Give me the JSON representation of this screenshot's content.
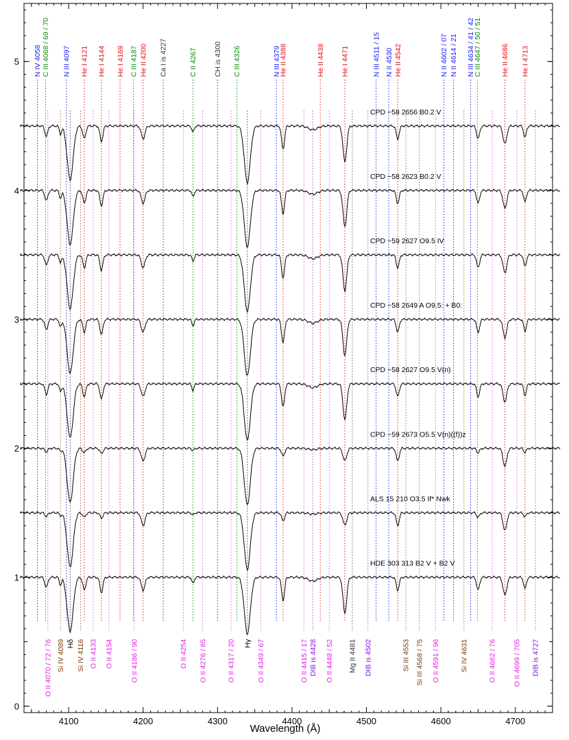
{
  "chart_data": {
    "type": "line",
    "title": "",
    "xlabel": "Wavelength (Å)",
    "ylabel": "",
    "xlim": [
      4040,
      4750
    ],
    "ylim": [
      -0.05,
      5.45
    ],
    "xticks": [
      4100,
      4200,
      4300,
      4400,
      4500,
      4600,
      4700
    ],
    "yticks": [
      0,
      1,
      2,
      3,
      4,
      5
    ],
    "grid": false,
    "legend": "none",
    "spectra": [
      {
        "name": "CPD −58 2656   B0.2 V",
        "offset": 4.5,
        "label_x": 4505,
        "label_y": 4.59
      },
      {
        "name": "CPD −58 2623   B0.2 V",
        "offset": 4.0,
        "label_x": 4505,
        "label_y": 4.09
      },
      {
        "name": "CPD −59 2627   O9.5 IV",
        "offset": 3.5,
        "label_x": 4505,
        "label_y": 3.59
      },
      {
        "name": "CPD −58 2649 A   O9.5: + B0:",
        "offset": 3.0,
        "label_x": 4505,
        "label_y": 3.09
      },
      {
        "name": "CPD −58 2627   O9.5 V(n)",
        "offset": 2.5,
        "label_x": 4505,
        "label_y": 2.59
      },
      {
        "name": "CPD −59 2673   O5.5 V(n)((f))z",
        "offset": 2.0,
        "label_x": 4505,
        "label_y": 2.09
      },
      {
        "name": "ALS 15 210   O3.5 If* Nwk",
        "offset": 1.5,
        "label_x": 4505,
        "label_y": 1.59
      },
      {
        "name": "HDE 303 313   B2 V + B2 V",
        "offset": 1.0,
        "label_x": 4505,
        "label_y": 1.09
      }
    ],
    "top_lines": [
      {
        "label": "N IV 4058",
        "x": 4058,
        "color": "#1a1aff"
      },
      {
        "label": "C III 4068 / 69 / 70",
        "x": 4069,
        "color": "#0a8a0a"
      },
      {
        "label": "N III 4097",
        "x": 4097,
        "color": "#1a1aff"
      },
      {
        "label": "He I 4121",
        "x": 4121,
        "color": "#e01010"
      },
      {
        "label": "He I 4144",
        "x": 4144,
        "color": "#e01010"
      },
      {
        "label": "He I 4169",
        "x": 4169,
        "color": "#e01010"
      },
      {
        "label": "C III 4187",
        "x": 4187,
        "color": "#0a8a0a"
      },
      {
        "label": "He II 4200",
        "x": 4200,
        "color": "#e01010"
      },
      {
        "label": "Ca I is 4227",
        "x": 4227,
        "color": "#333333"
      },
      {
        "label": "C II 4267",
        "x": 4267,
        "color": "#0a8a0a"
      },
      {
        "label": "CH is 4300",
        "x": 4300,
        "color": "#333333"
      },
      {
        "label": "C III 4326",
        "x": 4326,
        "color": "#0a8a0a"
      },
      {
        "label": "N III 4379",
        "x": 4379,
        "color": "#1a1aff"
      },
      {
        "label": "He II 4388",
        "x": 4388,
        "color": "#e01010"
      },
      {
        "label": "He II 4438",
        "x": 4438,
        "color": "#e01010"
      },
      {
        "label": "He I 4471",
        "x": 4471,
        "color": "#e01010"
      },
      {
        "label": "N III 4511 / 15",
        "x": 4513,
        "color": "#1a1aff"
      },
      {
        "label": "N II 4530",
        "x": 4530,
        "color": "#1a1aff"
      },
      {
        "label": "He II 4542",
        "x": 4542,
        "color": "#e01010"
      },
      {
        "label": "N II 4602 / 07",
        "x": 4604,
        "color": "#1a1aff"
      },
      {
        "label": "N II 4614 / 21",
        "x": 4617,
        "color": "#1a1aff"
      },
      {
        "label": "N III 4634 / 41 / 42",
        "x": 4640,
        "color": "#1a1aff"
      },
      {
        "label": "C III 4647 / 50 / 51",
        "x": 4649,
        "color": "#0a8a0a"
      },
      {
        "label": "He II 4686",
        "x": 4686,
        "color": "#e01010"
      },
      {
        "label": "He I 4713",
        "x": 4713,
        "color": "#e01010"
      }
    ],
    "bottom_lines": [
      {
        "label": "O II 4070 / 72 / 76",
        "x": 4072,
        "color": "#e020e0"
      },
      {
        "label": "Si IV 4089",
        "x": 4089,
        "color": "#7a3a0a"
      },
      {
        "label": "Hδ",
        "x": 4102,
        "color": "#000000"
      },
      {
        "label": "Si IV 4116",
        "x": 4116,
        "color": "#7a3a0a"
      },
      {
        "label": "O II 4133",
        "x": 4133,
        "color": "#e020e0"
      },
      {
        "label": "O II 4154",
        "x": 4154,
        "color": "#e020e0"
      },
      {
        "label": "O II 4186 / 90",
        "x": 4188,
        "color": "#e020e0"
      },
      {
        "label": "O II 4254",
        "x": 4254,
        "color": "#e020e0"
      },
      {
        "label": "O II 4276 / 85",
        "x": 4280,
        "color": "#e020e0"
      },
      {
        "label": "O II 4317 / 20",
        "x": 4318,
        "color": "#e020e0"
      },
      {
        "label": "Hγ",
        "x": 4340,
        "color": "#000000"
      },
      {
        "label": "O II 4349 / 67",
        "x": 4358,
        "color": "#e020e0"
      },
      {
        "label": "O II 4415 / 17",
        "x": 4416,
        "color": "#e020e0"
      },
      {
        "label": "DIB is 4428",
        "x": 4428,
        "color": "#8a10e0"
      },
      {
        "label": "O II 4448 / 52",
        "x": 4450,
        "color": "#e020e0"
      },
      {
        "label": "Mg II 4481",
        "x": 4481,
        "color": "#333333"
      },
      {
        "label": "DIB is 4502",
        "x": 4502,
        "color": "#8a10e0"
      },
      {
        "label": "Si III 4553",
        "x": 4553,
        "color": "#7a3a0a"
      },
      {
        "label": "Si III 4568 / 75",
        "x": 4571,
        "color": "#7a3a0a"
      },
      {
        "label": "O II 4591 / 96",
        "x": 4593,
        "color": "#e020e0"
      },
      {
        "label": "Si IV 4631",
        "x": 4631,
        "color": "#7a3a0a"
      },
      {
        "label": "O II 4662 / 76",
        "x": 4669,
        "color": "#e020e0"
      },
      {
        "label": "O II 4699 / 705",
        "x": 4702,
        "color": "#e020e0"
      },
      {
        "label": "DIB is 4727",
        "x": 4727,
        "color": "#8a10e0"
      }
    ]
  }
}
